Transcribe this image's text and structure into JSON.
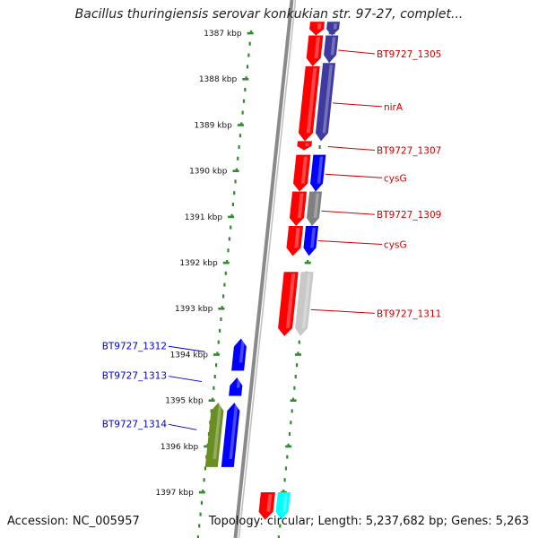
{
  "title": "Bacillus thuringiensis serovar konkukian str. 97-27, complet...",
  "accession": "Accession: NC_005957",
  "topology": "Topology: circular; Length: 5,237,682 bp; Genes: 5,263",
  "colors": {
    "tick": "#2e8b2e",
    "backbone": "#808080",
    "forward_label": "#cc0000",
    "reverse_label": "#0000cc",
    "red": "#ff0000",
    "blue": "#0000ff",
    "navy": "#3f3aa0",
    "gray": "#808080",
    "light_gray": "#c8c8c8",
    "olive": "#6b8e23",
    "cyan": "#00ffff"
  },
  "scale_labels": [
    {
      "kbp": 1387,
      "text": "1387 kbp"
    },
    {
      "kbp": 1388,
      "text": "1388 kbp"
    },
    {
      "kbp": 1389,
      "text": "1389 kbp"
    },
    {
      "kbp": 1390,
      "text": "1390 kbp"
    },
    {
      "kbp": 1391,
      "text": "1391 kbp"
    },
    {
      "kbp": 1392,
      "text": "1392 kbp"
    },
    {
      "kbp": 1393,
      "text": "1393 kbp"
    },
    {
      "kbp": 1394,
      "text": "1394 kbp"
    },
    {
      "kbp": 1395,
      "text": "1395 kbp"
    },
    {
      "kbp": 1396,
      "text": "1396 kbp"
    },
    {
      "kbp": 1397,
      "text": "1397 kbp"
    }
  ],
  "forward_genes": [
    {
      "start": 1386.75,
      "end": 1387.05,
      "color": "red"
    },
    {
      "start": 1387.05,
      "end": 1387.72,
      "color": "red"
    },
    {
      "start": 1387.72,
      "end": 1389.35,
      "color": "red"
    },
    {
      "start": 1389.35,
      "end": 1389.55,
      "color": "red"
    },
    {
      "start": 1389.65,
      "end": 1390.45,
      "color": "red"
    },
    {
      "start": 1390.45,
      "end": 1391.2,
      "color": "red"
    },
    {
      "start": 1391.2,
      "end": 1391.85,
      "color": "red"
    },
    {
      "start": 1392.2,
      "end": 1393.6,
      "color": "red"
    },
    {
      "start": 1397.0,
      "end": 1397.6,
      "color": "red"
    }
  ],
  "forward_genes_outer": [
    {
      "start": 1386.75,
      "end": 1387.05,
      "color": "navy"
    },
    {
      "start": 1387.05,
      "end": 1387.65,
      "color": "navy"
    },
    {
      "start": 1387.65,
      "end": 1389.35,
      "color": "navy"
    },
    {
      "start": 1389.65,
      "end": 1390.45,
      "color": "blue"
    },
    {
      "start": 1390.45,
      "end": 1391.2,
      "color": "gray"
    },
    {
      "start": 1391.2,
      "end": 1391.85,
      "color": "blue"
    },
    {
      "start": 1392.2,
      "end": 1393.6,
      "color": "light_gray"
    },
    {
      "start": 1397.0,
      "end": 1397.6,
      "color": "cyan"
    }
  ],
  "reverse_genes": [
    {
      "start": 1393.65,
      "end": 1394.35,
      "color": "blue"
    },
    {
      "start": 1394.5,
      "end": 1394.9,
      "color": "blue"
    },
    {
      "start": 1395.05,
      "end": 1396.45,
      "color": "blue"
    }
  ],
  "reverse_genes_outer": [
    {
      "start": 1395.05,
      "end": 1396.45,
      "color": "olive"
    }
  ],
  "forward_labels": [
    {
      "text": "BT9727_1305",
      "kbp": 1387.45
    },
    {
      "text": "nirA",
      "kbp": 1388.6
    },
    {
      "text": "BT9727_1307",
      "kbp": 1389.55
    },
    {
      "text": "cysG",
      "kbp": 1390.15
    },
    {
      "text": "BT9727_1309",
      "kbp": 1390.95
    },
    {
      "text": "cysG",
      "kbp": 1391.6
    },
    {
      "text": "BT9727_1311",
      "kbp": 1393.1
    }
  ],
  "reverse_labels": [
    {
      "text": "BT9727_1312",
      "kbp": 1393.9
    },
    {
      "text": "BT9727_1313",
      "kbp": 1394.55
    },
    {
      "text": "BT9727_1314",
      "kbp": 1395.6
    }
  ]
}
